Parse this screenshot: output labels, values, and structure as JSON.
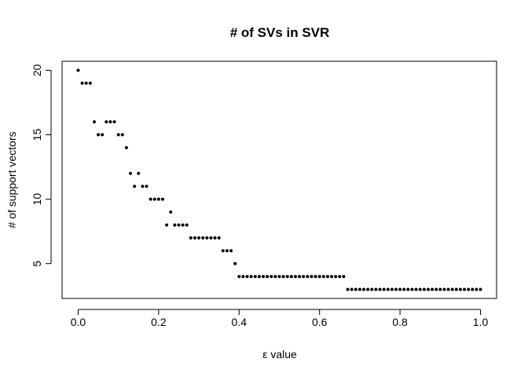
{
  "chart_data": {
    "type": "scatter",
    "title": "# of SVs in SVR",
    "xlabel": "ε value",
    "ylabel": "# of support vectors",
    "xlim": [
      -0.04,
      1.04
    ],
    "ylim": [
      2.3,
      20.7
    ],
    "xticks": [
      0.0,
      0.2,
      0.4,
      0.6,
      0.8,
      1.0
    ],
    "xtick_labels": [
      "0.0",
      "0.2",
      "0.4",
      "0.6",
      "0.8",
      "1.0"
    ],
    "yticks": [
      5,
      10,
      15,
      20
    ],
    "ytick_labels": [
      "5",
      "10",
      "15",
      "20"
    ],
    "grid": false,
    "point_color": "#000000",
    "x": [
      0.0,
      0.01,
      0.02,
      0.03,
      0.04,
      0.05,
      0.06,
      0.07,
      0.08,
      0.09,
      0.1,
      0.11,
      0.12,
      0.13,
      0.14,
      0.15,
      0.16,
      0.17,
      0.18,
      0.19,
      0.2,
      0.21,
      0.22,
      0.23,
      0.24,
      0.25,
      0.26,
      0.27,
      0.28,
      0.29,
      0.3,
      0.31,
      0.32,
      0.33,
      0.34,
      0.35,
      0.36,
      0.37,
      0.38,
      0.39,
      0.4,
      0.41,
      0.42,
      0.43,
      0.44,
      0.45,
      0.46,
      0.47,
      0.48,
      0.49,
      0.5,
      0.51,
      0.52,
      0.53,
      0.54,
      0.55,
      0.56,
      0.57,
      0.58,
      0.59,
      0.6,
      0.61,
      0.62,
      0.63,
      0.64,
      0.65,
      0.66,
      0.67,
      0.68,
      0.69,
      0.7,
      0.71,
      0.72,
      0.73,
      0.74,
      0.75,
      0.76,
      0.77,
      0.78,
      0.79,
      0.8,
      0.81,
      0.82,
      0.83,
      0.84,
      0.85,
      0.86,
      0.87,
      0.88,
      0.89,
      0.9,
      0.91,
      0.92,
      0.93,
      0.94,
      0.95,
      0.96,
      0.97,
      0.98,
      0.99,
      1.0
    ],
    "y": [
      20,
      19,
      19,
      19,
      16,
      15,
      15,
      16,
      16,
      16,
      15,
      15,
      14,
      12,
      11,
      12,
      11,
      11,
      10,
      10,
      10,
      10,
      8,
      9,
      8,
      8,
      8,
      8,
      7,
      7,
      7,
      7,
      7,
      7,
      7,
      7,
      6,
      6,
      6,
      5,
      4,
      4,
      4,
      4,
      4,
      4,
      4,
      4,
      4,
      4,
      4,
      4,
      4,
      4,
      4,
      4,
      4,
      4,
      4,
      4,
      4,
      4,
      4,
      4,
      4,
      4,
      4,
      3,
      3,
      3,
      3,
      3,
      3,
      3,
      3,
      3,
      3,
      3,
      3,
      3,
      3,
      3,
      3,
      3,
      3,
      3,
      3,
      3,
      3,
      3,
      3,
      3,
      3,
      3,
      3,
      3,
      3,
      3,
      3,
      3,
      3
    ]
  }
}
